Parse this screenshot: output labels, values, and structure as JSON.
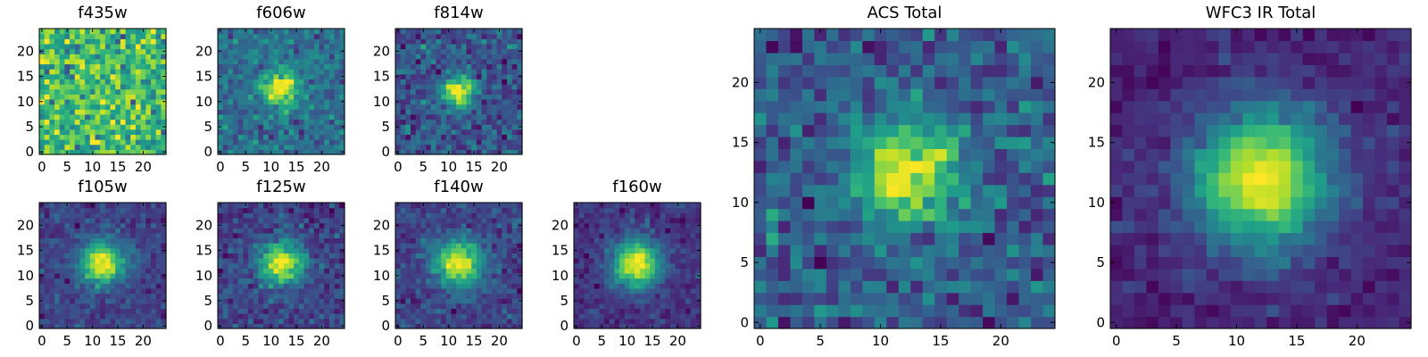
{
  "chart_data": {
    "type": "heatmap",
    "colormap": "viridis",
    "image_shape": [
      25,
      25
    ],
    "xlim": [
      -0.5,
      24.5
    ],
    "ylim": [
      -0.5,
      24.5
    ],
    "origin": "lower",
    "xticks": [
      0,
      5,
      10,
      15,
      20
    ],
    "yticks": [
      0,
      5,
      10,
      15,
      20
    ],
    "panels": [
      {
        "title": "f435w",
        "background": 0.68,
        "amplitude": 0.08,
        "sigma": 3.0,
        "center": [
          12,
          12
        ],
        "noise": 0.16,
        "seed": 11
      },
      {
        "title": "f606w",
        "background": 0.36,
        "amplitude": 0.62,
        "sigma": 2.6,
        "center": [
          12,
          12.5
        ],
        "noise": 0.09,
        "seed": 22
      },
      {
        "title": "f814w",
        "background": 0.26,
        "amplitude": 0.74,
        "sigma": 2.3,
        "center": [
          12,
          12
        ],
        "noise": 0.1,
        "seed": 33
      },
      {
        "title": "f105w",
        "background": 0.2,
        "amplitude": 0.8,
        "sigma": 3.0,
        "center": [
          12,
          12.5
        ],
        "noise": 0.07,
        "seed": 44
      },
      {
        "title": "f125w",
        "background": 0.2,
        "amplitude": 0.8,
        "sigma": 3.0,
        "center": [
          12,
          12.5
        ],
        "noise": 0.08,
        "seed": 55
      },
      {
        "title": "f140w",
        "background": 0.2,
        "amplitude": 0.8,
        "sigma": 3.2,
        "center": [
          12,
          12.5
        ],
        "noise": 0.07,
        "seed": 66
      },
      {
        "title": "f160w",
        "background": 0.15,
        "amplitude": 0.85,
        "sigma": 3.3,
        "center": [
          12,
          12.5
        ],
        "noise": 0.06,
        "seed": 77
      },
      {
        "title": "ACS Total",
        "background": 0.3,
        "amplitude": 0.7,
        "sigma": 2.8,
        "center": [
          12,
          12.5
        ],
        "noise": 0.11,
        "seed": 88
      },
      {
        "title": "WFC3 IR Total",
        "background": 0.1,
        "amplitude": 0.9,
        "sigma": 4.0,
        "center": [
          12,
          12
        ],
        "noise": 0.05,
        "seed": 99
      }
    ]
  }
}
